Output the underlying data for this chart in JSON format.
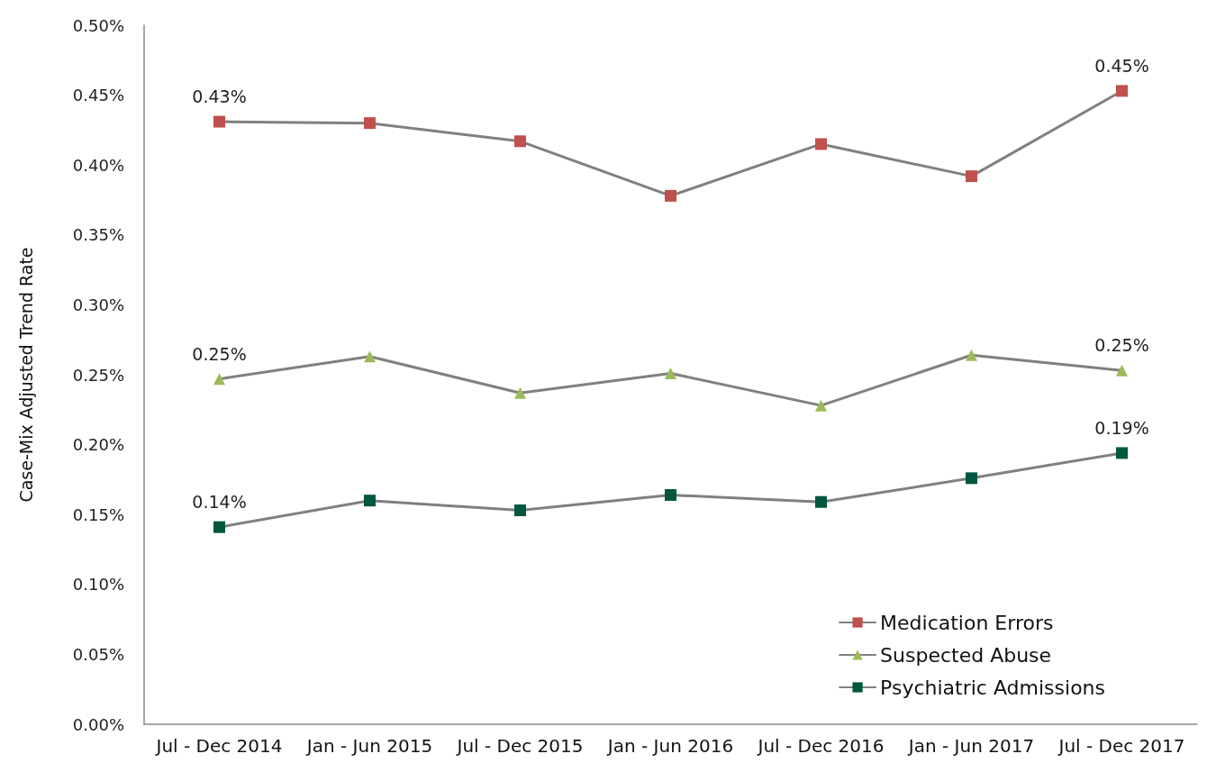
{
  "chart_data": {
    "type": "line",
    "ylabel": "Case-Mix Adjusted Trend Rate",
    "categories": [
      "Jul - Dec 2014",
      "Jan - Jun 2015",
      "Jul - Dec 2015",
      "Jan - Jun 2016",
      "Jul - Dec 2016",
      "Jan - Jun 2017",
      "Jul - Dec 2017"
    ],
    "series": [
      {
        "name": "Medication Errors",
        "color": "#c0504d",
        "marker": "square",
        "values": [
          0.431,
          0.43,
          0.417,
          0.378,
          0.415,
          0.392,
          0.453
        ],
        "value_labels": [
          "0.43%",
          null,
          null,
          null,
          null,
          null,
          "0.45%"
        ]
      },
      {
        "name": "Suspected Abuse",
        "color": "#9bbb59",
        "marker": "triangle",
        "values": [
          0.247,
          0.263,
          0.237,
          0.251,
          0.228,
          0.264,
          0.253
        ],
        "value_labels": [
          "0.25%",
          null,
          null,
          null,
          null,
          null,
          "0.25%"
        ]
      },
      {
        "name": "Psychiatric Admissions",
        "color": "#00573f",
        "marker": "square",
        "values": [
          0.141,
          0.16,
          0.153,
          0.164,
          0.159,
          0.176,
          0.194
        ],
        "value_labels": [
          "0.14%",
          null,
          null,
          null,
          null,
          null,
          "0.19%"
        ]
      }
    ],
    "ylim": [
      0,
      0.5
    ],
    "yticks": [
      {
        "value": 0,
        "label": "0.00%"
      },
      {
        "value": 0.05,
        "label": "0.05%"
      },
      {
        "value": 0.1,
        "label": "0.10%"
      },
      {
        "value": 0.15,
        "label": "0.15%"
      },
      {
        "value": 0.2,
        "label": "0.20%"
      },
      {
        "value": 0.25,
        "label": "0.25%"
      },
      {
        "value": 0.3,
        "label": "0.30%"
      },
      {
        "value": 0.35,
        "label": "0.35%"
      },
      {
        "value": 0.4,
        "label": "0.40%"
      },
      {
        "value": 0.45,
        "label": "0.45%"
      },
      {
        "value": 0.5,
        "label": "0.50%"
      }
    ],
    "grid": false,
    "legend": "bottom right",
    "line_style": "solid"
  }
}
